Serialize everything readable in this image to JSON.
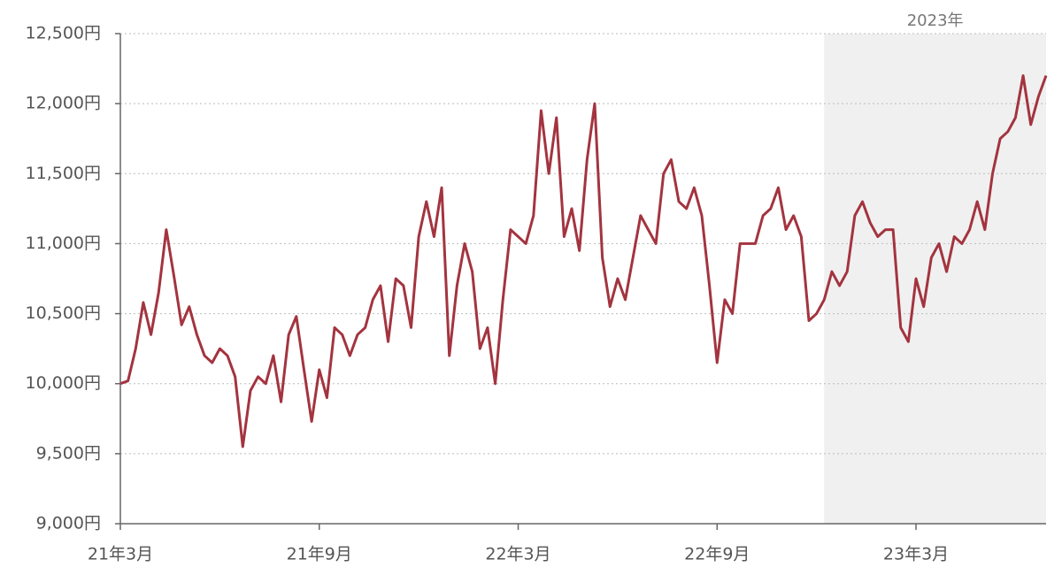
{
  "chart_data": {
    "type": "line",
    "categories": [
      "21年3月",
      null,
      null,
      null,
      null,
      null,
      null,
      null,
      null,
      null,
      null,
      null,
      null,
      null,
      null,
      null,
      null,
      null,
      null,
      null,
      null,
      null,
      null,
      null,
      null,
      null,
      "21年9月",
      null,
      null,
      null,
      null,
      null,
      null,
      null,
      null,
      null,
      null,
      null,
      null,
      null,
      null,
      null,
      null,
      null,
      null,
      null,
      null,
      null,
      null,
      null,
      null,
      null,
      "22年3月",
      null,
      null,
      null,
      null,
      null,
      null,
      null,
      null,
      null,
      null,
      null,
      null,
      null,
      null,
      null,
      null,
      null,
      null,
      null,
      null,
      null,
      null,
      null,
      null,
      null,
      "22年9月",
      null,
      null,
      null,
      null,
      null,
      null,
      null,
      null,
      null,
      null,
      null,
      null,
      null,
      null,
      null,
      null,
      null,
      null,
      null,
      null,
      null,
      null,
      null,
      null,
      null,
      "23年3月",
      null,
      null,
      null,
      null,
      null,
      null,
      null,
      null,
      null,
      null,
      null,
      null,
      null,
      null,
      null,
      null,
      null
    ],
    "series": [
      {
        "color": "#a3343f",
        "values": [
          10000,
          10020,
          10250,
          10580,
          10350,
          10650,
          11100,
          10770,
          10420,
          10550,
          10350,
          10200,
          10150,
          10250,
          10200,
          10050,
          9550,
          9950,
          10050,
          10000,
          10200,
          9870,
          10350,
          10480,
          10100,
          9730,
          10100,
          9900,
          10400,
          10350,
          10200,
          10350,
          10400,
          10600,
          10700,
          10300,
          10750,
          10700,
          10400,
          11050,
          11300,
          11050,
          11400,
          10200,
          10700,
          11000,
          10800,
          10250,
          10400,
          10000,
          10600,
          11100,
          11050,
          11000,
          11200,
          11950,
          11500,
          11900,
          11050,
          11250,
          10950,
          11600,
          12000,
          10900,
          10550,
          10750,
          10600,
          10900,
          11200,
          11100,
          11000,
          11500,
          11600,
          11300,
          11250,
          11400,
          11200,
          10700,
          10150,
          10600,
          10500,
          11000,
          11000,
          11000,
          11200,
          11250,
          11400,
          11100,
          11200,
          11050,
          10450,
          10500,
          10600,
          10800,
          10700,
          10800,
          11200,
          11300,
          11150,
          11050,
          11100,
          11100,
          10400,
          10300,
          10750,
          10550,
          10900,
          11000,
          10800,
          11050,
          11000,
          11100,
          11300,
          11100,
          11500,
          11750,
          11800,
          11900,
          12200,
          11850,
          12050,
          12200
        ]
      }
    ],
    "ylim": [
      9000,
      12500
    ],
    "yticks": [
      {
        "value": 9000,
        "label": "9,000円"
      },
      {
        "value": 9500,
        "label": "9,500円"
      },
      {
        "value": 10000,
        "label": "10,000円"
      },
      {
        "value": 10500,
        "label": "10,500円"
      },
      {
        "value": 11000,
        "label": "11,000円"
      },
      {
        "value": 11500,
        "label": "11,500円"
      },
      {
        "value": 12000,
        "label": "12,000円"
      },
      {
        "value": 12500,
        "label": "12,500円"
      }
    ],
    "grid": true,
    "highlight": {
      "label": "2023年",
      "start_index": 92
    }
  }
}
